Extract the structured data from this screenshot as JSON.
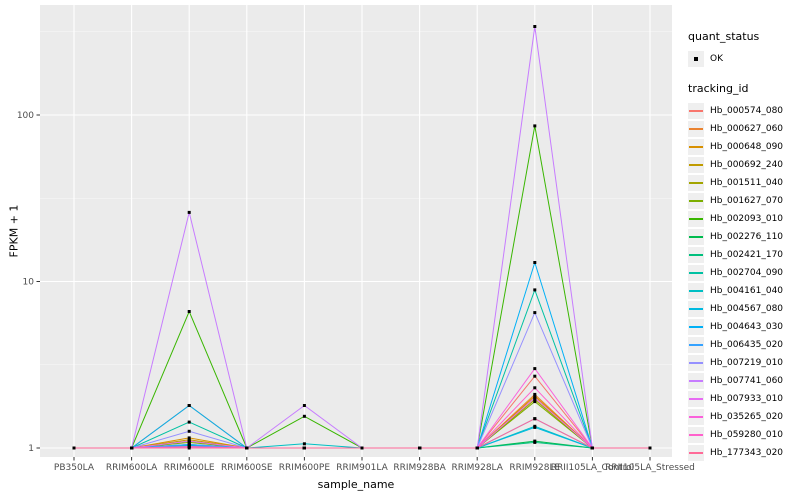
{
  "figure": {
    "background": "#FFFFFF"
  },
  "chart_data": {
    "type": "line",
    "title": "",
    "xlabel": "sample_name",
    "ylabel": "FPKM + 1",
    "y_scale": "log10",
    "ylim": [
      1,
      460
    ],
    "y_ticks": [
      1,
      10,
      100
    ],
    "y_minor_ticks": [
      3.162,
      31.62,
      316.2
    ],
    "grid": "on",
    "legend_position": "right",
    "panel_bg": "#EBEBEB",
    "grid_color": "#FFFFFF",
    "point_color": "#000000",
    "axis_text_color": "#4D4D4D",
    "categories": [
      "PB350LA",
      "RRIM600LA",
      "RRIM600LE",
      "RRIM600SE",
      "RRIM600PE",
      "RRIM901LA",
      "RRIM928BA",
      "RRIM928LA",
      "RRIM928LE",
      "RRII105LA_Control",
      "RRII105LA_Stressed"
    ],
    "series": [
      {
        "tracking_id": "Hb_000574_080",
        "color": "#F8766D",
        "values": [
          1,
          1,
          1.05,
          1,
          1,
          1,
          1,
          1,
          2.7,
          1,
          1
        ]
      },
      {
        "tracking_id": "Hb_000627_060",
        "color": "#EA8331",
        "values": [
          1,
          1,
          1.8,
          1,
          1,
          1,
          1,
          1,
          2.1,
          1,
          1
        ]
      },
      {
        "tracking_id": "Hb_000648_090",
        "color": "#D89000",
        "values": [
          1,
          1,
          1.15,
          1,
          1,
          1,
          1,
          1,
          2.05,
          1,
          1
        ]
      },
      {
        "tracking_id": "Hb_000692_240",
        "color": "#C09B00",
        "values": [
          1,
          1,
          1.12,
          1,
          1,
          1,
          1,
          1,
          2.0,
          1,
          1
        ]
      },
      {
        "tracking_id": "Hb_001511_040",
        "color": "#A3A500",
        "values": [
          1,
          1,
          1.1,
          1,
          1,
          1,
          1,
          1,
          1.95,
          1,
          1
        ]
      },
      {
        "tracking_id": "Hb_001627_070",
        "color": "#7CAE00",
        "values": [
          1,
          1,
          1.08,
          1,
          1,
          1,
          1,
          1,
          1.9,
          1,
          1
        ]
      },
      {
        "tracking_id": "Hb_002093_010",
        "color": "#39B600",
        "values": [
          1,
          1,
          6.6,
          1,
          1.55,
          1,
          1,
          1,
          86,
          1,
          1
        ]
      },
      {
        "tracking_id": "Hb_002276_110",
        "color": "#00BB4E",
        "values": [
          1,
          1,
          1.03,
          1,
          1,
          1,
          1,
          1,
          1.1,
          1,
          1
        ]
      },
      {
        "tracking_id": "Hb_002421_170",
        "color": "#00BF7D",
        "values": [
          1,
          1,
          1.02,
          1,
          1,
          1,
          1,
          1,
          1.08,
          1,
          1
        ]
      },
      {
        "tracking_id": "Hb_002704_090",
        "color": "#00C1A3",
        "values": [
          1,
          1,
          1.43,
          1,
          1,
          1,
          1,
          1,
          8.9,
          1,
          1
        ]
      },
      {
        "tracking_id": "Hb_004161_040",
        "color": "#00BFC4",
        "values": [
          1,
          1,
          1.05,
          1,
          1.06,
          1,
          1,
          1,
          1.35,
          1,
          1
        ]
      },
      {
        "tracking_id": "Hb_004567_080",
        "color": "#00BAE0",
        "values": [
          1,
          1,
          1.04,
          1,
          1,
          1,
          1,
          1,
          1.33,
          1,
          1
        ]
      },
      {
        "tracking_id": "Hb_004643_030",
        "color": "#00B0F6",
        "values": [
          1,
          1,
          1.8,
          1,
          1,
          1,
          1,
          1,
          13,
          1,
          1
        ]
      },
      {
        "tracking_id": "Hb_006435_020",
        "color": "#35A2FF",
        "values": [
          1,
          1,
          1.05,
          1,
          1,
          1,
          1,
          1,
          1.5,
          1,
          1
        ]
      },
      {
        "tracking_id": "Hb_007219_010",
        "color": "#9590FF",
        "values": [
          1,
          1,
          1.26,
          1,
          1,
          1,
          1,
          1,
          6.5,
          1,
          1
        ]
      },
      {
        "tracking_id": "Hb_007741_060",
        "color": "#C77CFF",
        "values": [
          1,
          1,
          26,
          1,
          1.8,
          1,
          1,
          1,
          340,
          1,
          1
        ]
      },
      {
        "tracking_id": "Hb_007933_010",
        "color": "#E76BF3",
        "values": [
          1,
          1,
          1.1,
          1,
          1,
          1,
          1,
          1,
          2.0,
          1,
          1
        ]
      },
      {
        "tracking_id": "Hb_035265_020",
        "color": "#FA62DB",
        "values": [
          1,
          1,
          1.02,
          1,
          1,
          1,
          1,
          1,
          3.0,
          1,
          1
        ]
      },
      {
        "tracking_id": "Hb_059280_010",
        "color": "#FF61CC",
        "values": [
          1,
          1,
          1.02,
          1,
          1,
          1,
          1,
          1,
          2.3,
          1,
          1
        ]
      },
      {
        "tracking_id": "Hb_177343_020",
        "color": "#FF6A98",
        "values": [
          1,
          1,
          1.0,
          1,
          1,
          1,
          1,
          1,
          1.5,
          1,
          1
        ]
      }
    ],
    "legend": {
      "quant_status": {
        "title": "quant_status",
        "items": [
          {
            "label": "OK",
            "marker": "black-point"
          }
        ]
      },
      "tracking": {
        "title": "tracking_id"
      }
    }
  }
}
